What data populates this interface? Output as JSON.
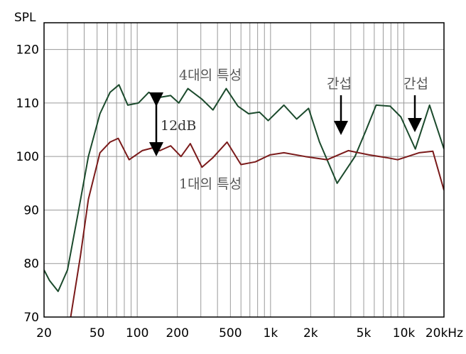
{
  "chart_data": {
    "type": "line",
    "y_label": "SPL",
    "xscale": "log",
    "xlim": [
      20,
      20000
    ],
    "ylim": [
      70,
      125
    ],
    "xticks": [
      20,
      50,
      100,
      200,
      500,
      {
        "value": 1000,
        "label": "1k"
      },
      {
        "value": 2000,
        "label": "2k"
      },
      {
        "value": 5000,
        "label": "5k"
      },
      {
        "value": 10000,
        "label": "10k"
      },
      {
        "value": 20000,
        "label": "20kHz"
      }
    ],
    "minor_xticks": [
      30,
      40,
      60,
      70,
      80,
      90,
      300,
      400,
      600,
      700,
      800,
      900,
      3000,
      4000,
      6000,
      7000,
      8000,
      9000
    ],
    "yticks": [
      70,
      80,
      90,
      100,
      110,
      120
    ],
    "grid": true,
    "series": [
      {
        "name": "4대의 특성",
        "color": "#1b4a2c",
        "x": [
          20,
          22,
          25.5,
          30,
          36,
          43,
          52.5,
          62.5,
          73,
          85,
          102,
          122,
          143,
          178,
          205,
          240,
          306,
          370,
          465,
          570,
          685,
          825,
          960,
          1260,
          1570,
          1930,
          2330,
          3160,
          4300,
          5160,
          6200,
          7900,
          9500,
          12200,
          15600,
          20000
        ],
        "values": [
          78.8,
          76.8,
          74.8,
          78.8,
          89.4,
          100,
          108,
          112,
          113.4,
          109.6,
          110,
          112,
          111,
          111.4,
          110,
          112.7,
          110.7,
          108.7,
          112.7,
          109.4,
          108,
          108.3,
          106.7,
          109.6,
          107,
          109,
          102.7,
          95,
          100,
          104.7,
          109.6,
          109.4,
          107.4,
          101.4,
          109.6,
          101.4
        ]
      },
      {
        "name": "1대의 특성",
        "color": "#7a1a1a",
        "x": [
          31.7,
          37.5,
          43,
          52.5,
          62.5,
          72,
          87,
          109,
          130,
          148,
          178,
          213,
          250,
          306,
          370,
          472,
          600,
          770,
          990,
          1260,
          1820,
          2660,
          3830,
          5490,
          7400,
          9000,
          13000,
          16500,
          20000
        ],
        "values": [
          70,
          81.4,
          92,
          100.7,
          102.7,
          103.4,
          99.4,
          101.1,
          101.6,
          101.1,
          102,
          100,
          102.4,
          98,
          99.8,
          102.7,
          98.5,
          99,
          100.3,
          100.7,
          100,
          99.4,
          101.1,
          100.3,
          99.8,
          99.4,
          100.7,
          101,
          93.7
        ]
      }
    ],
    "annotations": [
      "12dB",
      "간섭",
      "간섭"
    ]
  }
}
